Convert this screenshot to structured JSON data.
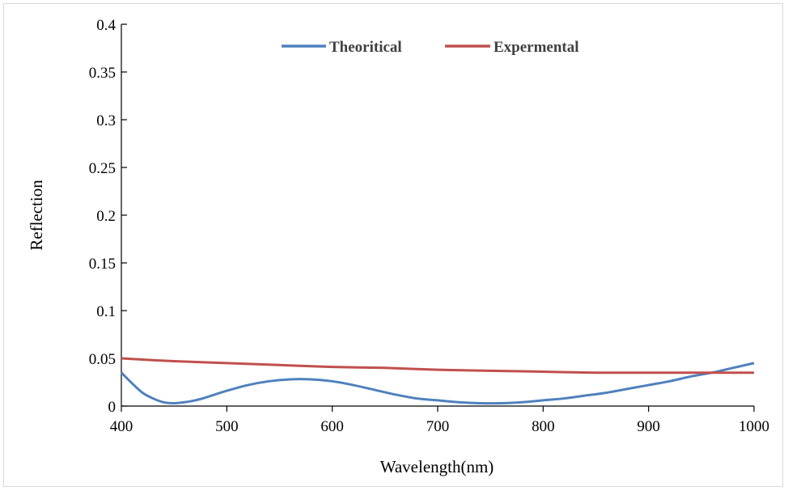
{
  "chart_data": {
    "type": "line",
    "title": "",
    "xlabel": "Wavelength(nm)",
    "ylabel": "Reflection",
    "xlim": [
      400,
      1000
    ],
    "ylim": [
      0,
      0.4
    ],
    "xticks": [
      400,
      500,
      600,
      700,
      800,
      900,
      1000
    ],
    "yticks": [
      0,
      0.05,
      0.1,
      0.15,
      0.2,
      0.25,
      0.3,
      0.35,
      0.4
    ],
    "xtick_labels": [
      "400",
      "500",
      "600",
      "700",
      "800",
      "900",
      "1000"
    ],
    "ytick_labels": [
      "0",
      "0.05",
      "0.1",
      "0.15",
      "0.2",
      "0.25",
      "0.3",
      "0.35",
      "0.4"
    ],
    "grid": false,
    "legend_position": "top-center",
    "series": [
      {
        "name": "Theoritical",
        "color": "#4f81bd",
        "x": [
          400,
          410,
          420,
          430,
          440,
          450,
          460,
          470,
          480,
          500,
          520,
          540,
          560,
          580,
          600,
          620,
          640,
          660,
          680,
          700,
          720,
          740,
          760,
          780,
          800,
          820,
          840,
          860,
          880,
          900,
          920,
          940,
          960,
          980,
          1000
        ],
        "y": [
          0.035,
          0.024,
          0.014,
          0.008,
          0.004,
          0.003,
          0.004,
          0.006,
          0.009,
          0.016,
          0.022,
          0.026,
          0.028,
          0.028,
          0.026,
          0.022,
          0.017,
          0.012,
          0.008,
          0.006,
          0.004,
          0.003,
          0.003,
          0.004,
          0.006,
          0.008,
          0.011,
          0.014,
          0.018,
          0.022,
          0.026,
          0.031,
          0.035,
          0.04,
          0.045
        ]
      },
      {
        "name": "Expermental",
        "color": "#c0504d",
        "x": [
          400,
          450,
          500,
          550,
          600,
          650,
          700,
          750,
          800,
          850,
          900,
          950,
          1000
        ],
        "y": [
          0.05,
          0.047,
          0.045,
          0.043,
          0.041,
          0.04,
          0.038,
          0.037,
          0.036,
          0.035,
          0.035,
          0.035,
          0.035
        ]
      }
    ]
  }
}
